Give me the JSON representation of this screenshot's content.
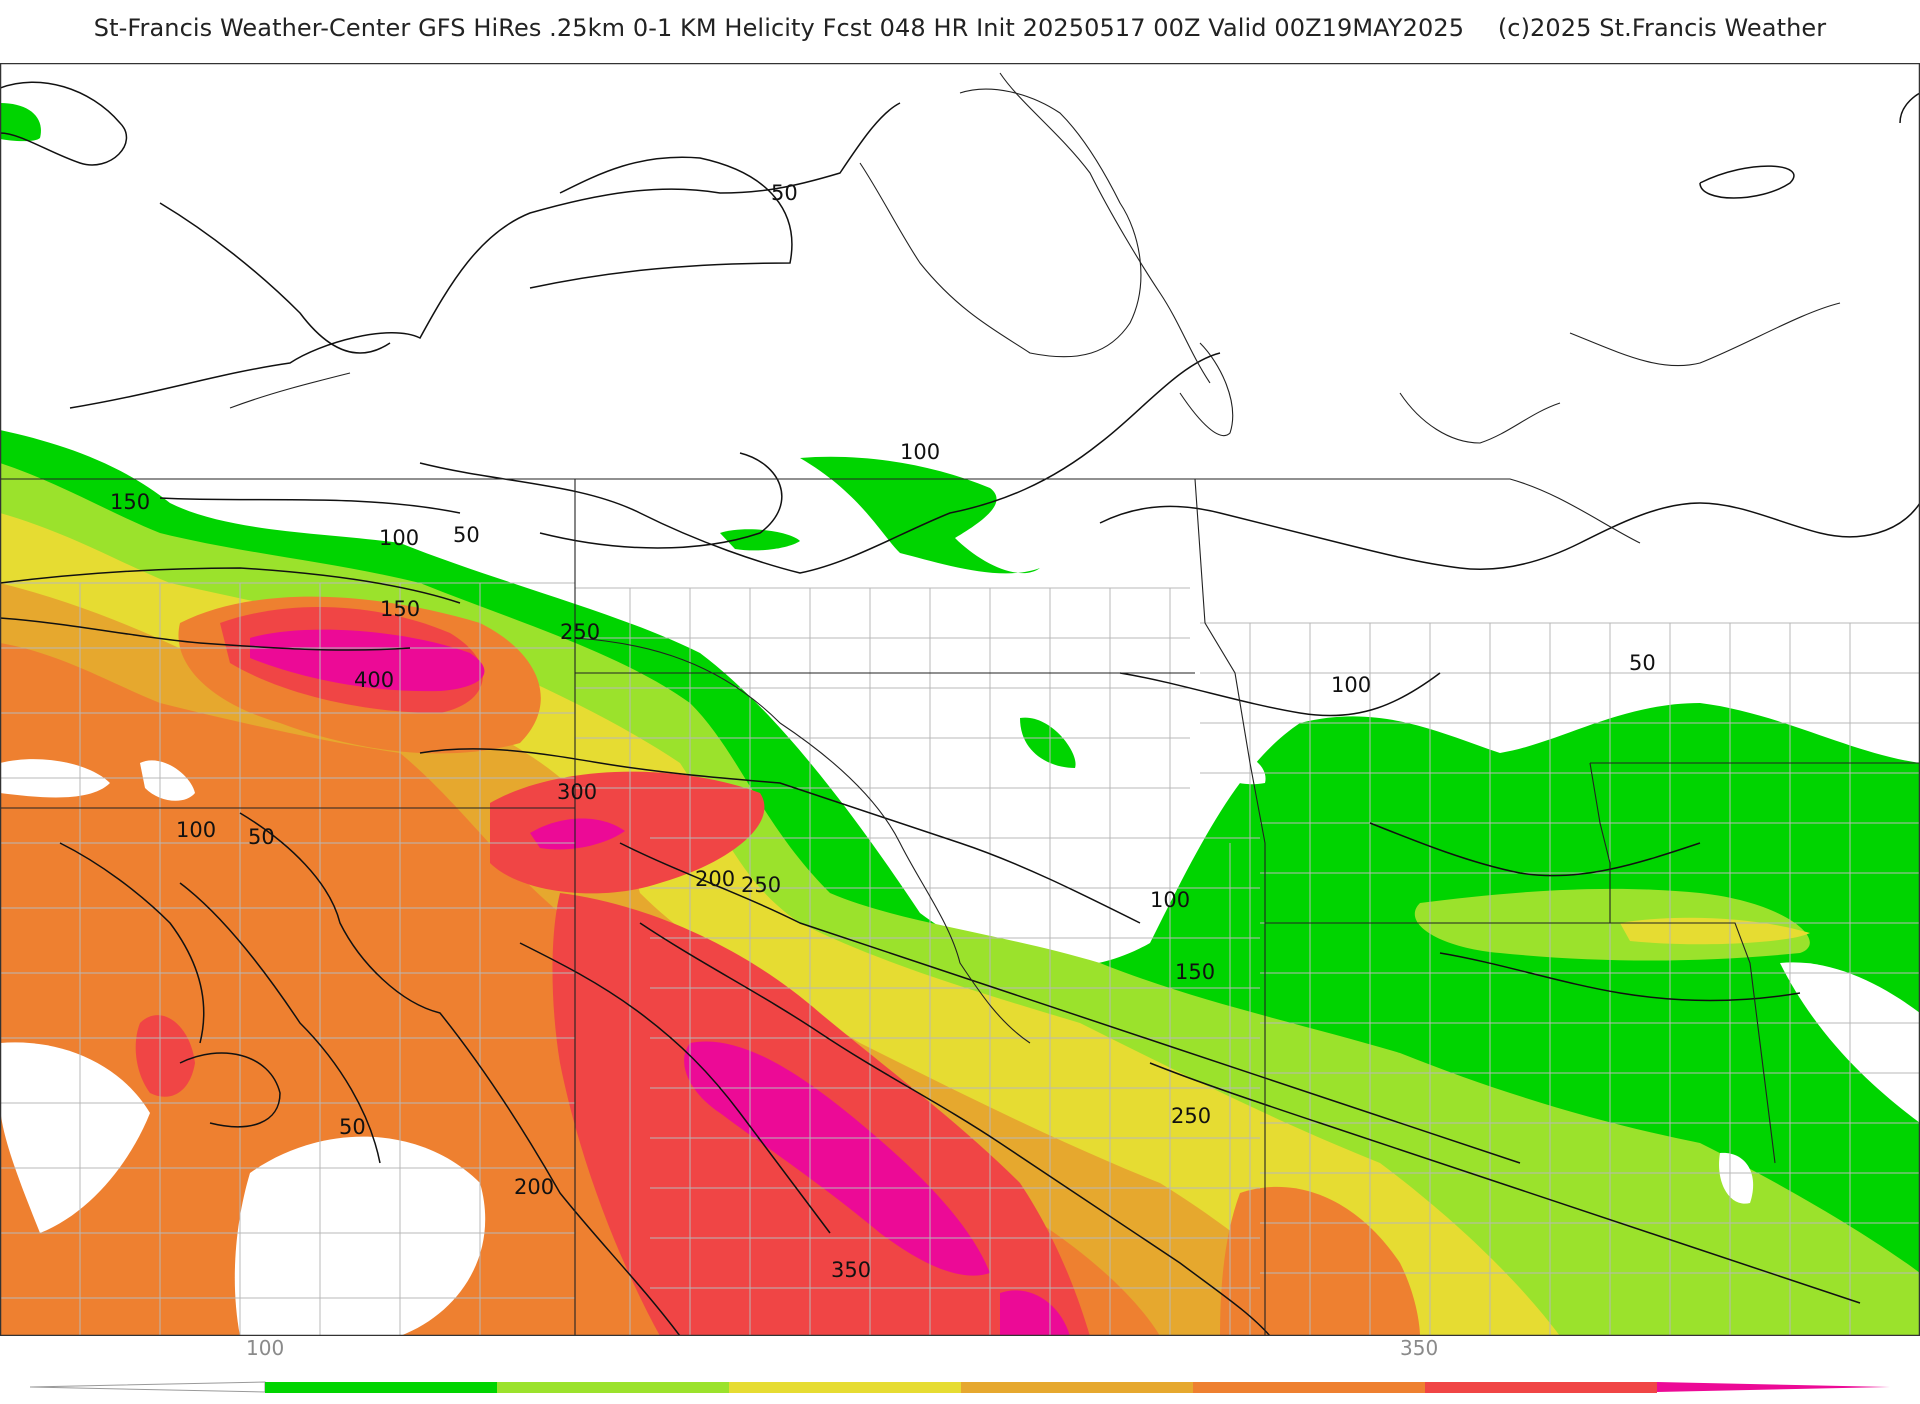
{
  "header": {
    "title": "St-Francis Weather-Center GFS HiRes .25km 0-1 KM Helicity Fcst 048 HR Init 20250517 00Z  Valid 00Z19MAY2025",
    "copyright": "(c)2025 St.Francis Weather"
  },
  "map": {
    "contour_labels": [
      {
        "id": "c50-north",
        "text": "50"
      },
      {
        "id": "c100-center",
        "text": "100"
      },
      {
        "id": "c150-west",
        "text": "150"
      },
      {
        "id": "c100-west",
        "text": "100"
      },
      {
        "id": "c50-west",
        "text": "50"
      },
      {
        "id": "c150-west2",
        "text": "150"
      },
      {
        "id": "c250-west",
        "text": "250"
      },
      {
        "id": "c400-west",
        "text": "400"
      },
      {
        "id": "c300-west",
        "text": "300"
      },
      {
        "id": "c100-sw",
        "text": "100"
      },
      {
        "id": "c50-sw",
        "text": "50"
      },
      {
        "id": "c200-mid",
        "text": "200"
      },
      {
        "id": "c250-mid",
        "text": "250"
      },
      {
        "id": "c50-south",
        "text": "50"
      },
      {
        "id": "c200-south",
        "text": "200"
      },
      {
        "id": "c350-south",
        "text": "350"
      },
      {
        "id": "c100-east",
        "text": "100"
      },
      {
        "id": "c50-east",
        "text": "50"
      },
      {
        "id": "c100-east2",
        "text": "100"
      },
      {
        "id": "c150-east",
        "text": "150"
      },
      {
        "id": "c250-east",
        "text": "250"
      }
    ]
  },
  "legend": {
    "tick_labels": [
      "100",
      "350"
    ],
    "colors": [
      "#00d400",
      "#9be22c",
      "#e6dc32",
      "#e6a82e",
      "#ee8030",
      "#f04545",
      "#ec0a96"
    ]
  }
}
